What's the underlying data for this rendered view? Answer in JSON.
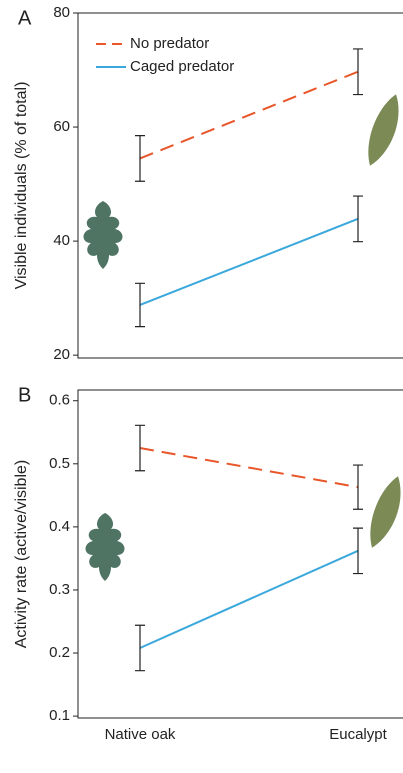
{
  "chart_data": [
    {
      "type": "line",
      "label": "A",
      "ylabel": "Visible individuals (% of total)",
      "ylim": [
        19.5,
        80
      ],
      "yticks": [
        20,
        40,
        60,
        80
      ],
      "legend": "upper left",
      "series": [
        {
          "name": "No predator",
          "color": "#e8562a",
          "dash": true,
          "values": [
            54.5,
            69.7
          ],
          "errors": [
            4,
            4
          ]
        },
        {
          "name": "Caged predator",
          "color": "#3aa8dc",
          "dash": false,
          "values": [
            28.8,
            43.9
          ],
          "errors": [
            3.8,
            4
          ]
        }
      ]
    },
    {
      "type": "line",
      "label": "B",
      "ylabel": "Activity rate (active/visible)",
      "categories": [
        "Native oak",
        "Eucalypt"
      ],
      "ylim": [
        0.097,
        0.617
      ],
      "yticks": [
        0.1,
        0.2,
        0.3,
        0.4,
        0.5,
        0.6
      ],
      "series": [
        {
          "color": "#e8562a",
          "dash": true,
          "values": [
            0.525,
            0.463
          ],
          "errors": [
            0.036,
            0.035
          ]
        },
        {
          "color": "#3aa8dc",
          "dash": false,
          "values": [
            0.208,
            0.362
          ],
          "errors": [
            0.036,
            0.036
          ]
        }
      ]
    }
  ]
}
